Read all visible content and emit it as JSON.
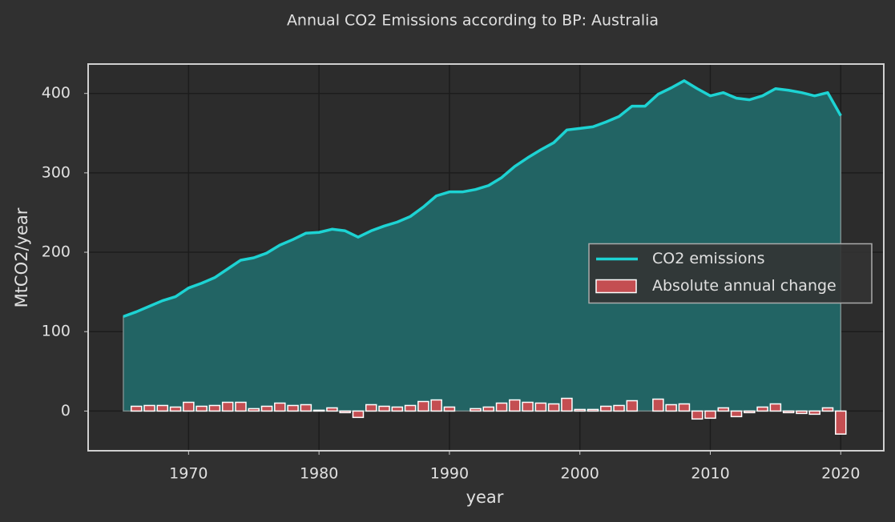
{
  "chart_data": {
    "type": "line",
    "title": "Annual CO2 Emissions according to BP: Australia",
    "xlabel": "year",
    "ylabel": "MtCO2/year",
    "x": [
      1965,
      1966,
      1967,
      1968,
      1969,
      1970,
      1971,
      1972,
      1973,
      1974,
      1975,
      1976,
      1977,
      1978,
      1979,
      1980,
      1981,
      1982,
      1983,
      1984,
      1985,
      1986,
      1987,
      1988,
      1989,
      1990,
      1991,
      1992,
      1993,
      1994,
      1995,
      1996,
      1997,
      1998,
      1999,
      2000,
      2001,
      2002,
      2003,
      2004,
      2005,
      2006,
      2007,
      2008,
      2009,
      2010,
      2011,
      2012,
      2013,
      2014,
      2015,
      2016,
      2017,
      2018,
      2019,
      2020
    ],
    "series": [
      {
        "name": "CO2 emissions",
        "color": "#1dd3d3",
        "fill_color": "#226464",
        "values": [
          119,
          125,
          132,
          139,
          144,
          155,
          161,
          168,
          179,
          190,
          193,
          199,
          209,
          216,
          224,
          225,
          229,
          227,
          219,
          227,
          233,
          238,
          245,
          257,
          271,
          276,
          276,
          279,
          284,
          294,
          308,
          319,
          329,
          338,
          354,
          356,
          358,
          364,
          371,
          384,
          384,
          399,
          407,
          416,
          406,
          397,
          401,
          394,
          392,
          397,
          406,
          404,
          401,
          397,
          401,
          372
        ]
      },
      {
        "name": "Absolute annual change",
        "type": "bar",
        "color": "#c44e52",
        "x": [
          1966,
          1967,
          1968,
          1969,
          1970,
          1971,
          1972,
          1973,
          1974,
          1975,
          1976,
          1977,
          1978,
          1979,
          1980,
          1981,
          1982,
          1983,
          1984,
          1985,
          1986,
          1987,
          1988,
          1989,
          1990,
          1991,
          1992,
          1993,
          1994,
          1995,
          1996,
          1997,
          1998,
          1999,
          2000,
          2001,
          2002,
          2003,
          2004,
          2005,
          2006,
          2007,
          2008,
          2009,
          2010,
          2011,
          2012,
          2013,
          2014,
          2015,
          2016,
          2017,
          2018,
          2019,
          2020
        ],
        "values": [
          6,
          7,
          7,
          5,
          11,
          6,
          7,
          11,
          11,
          3,
          6,
          10,
          7,
          8,
          1,
          4,
          -2,
          -8,
          8,
          6,
          5,
          7,
          12,
          14,
          5,
          0,
          3,
          5,
          10,
          14,
          11,
          10,
          9,
          16,
          2,
          2,
          6,
          7,
          13,
          0,
          15,
          8,
          9,
          -10,
          -9,
          4,
          -7,
          -2,
          5,
          9,
          -2,
          -3,
          -4,
          4,
          -29
        ]
      }
    ],
    "xlim": [
      1962.3,
      2023.3
    ],
    "ylim": [
      -50,
      437
    ],
    "xticks": [
      1970,
      1980,
      1990,
      2000,
      2010,
      2020
    ],
    "yticks": [
      0,
      100,
      200,
      300,
      400
    ],
    "grid": true,
    "legend": "center right"
  }
}
